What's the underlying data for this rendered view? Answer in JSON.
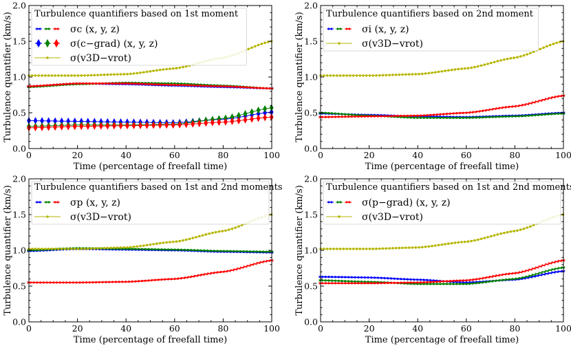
{
  "chart_data": [
    {
      "type": "line",
      "title": "Turbulence quantifiers based on 1st moment",
      "xlabel": "Time (percentage of freefall time)",
      "ylabel": "Turbulence quantifier (km/s)",
      "xlim": [
        0,
        100
      ],
      "ylim": [
        0,
        2.0
      ],
      "xticks": [
        0,
        20,
        40,
        60,
        80,
        100
      ],
      "yticks": [
        0.0,
        0.5,
        1.0,
        1.5,
        2.0
      ],
      "legend": [
        {
          "label": "σc (x, y, z)",
          "colors": [
            "#0000ff",
            "#008000",
            "#ff0000"
          ],
          "marker": "x"
        },
        {
          "label": "σ(c−grad) (x, y, z)",
          "colors": [
            "#0000ff",
            "#008000",
            "#ff0000"
          ],
          "marker": "diamond"
        },
        {
          "label": "σ(v3D−vrot)",
          "colors": [
            "#b5b500"
          ],
          "marker": "dot"
        }
      ],
      "series": [
        {
          "name": "σc x",
          "color": "#0000ff",
          "marker": "x",
          "x": [
            0,
            20,
            40,
            60,
            80,
            100
          ],
          "y": [
            0.87,
            0.91,
            0.9,
            0.88,
            0.86,
            0.84
          ]
        },
        {
          "name": "σc y",
          "color": "#008000",
          "marker": "x",
          "x": [
            0,
            20,
            40,
            60,
            80,
            100
          ],
          "y": [
            0.86,
            0.9,
            0.92,
            0.91,
            0.88,
            0.84
          ]
        },
        {
          "name": "σc z",
          "color": "#ff0000",
          "marker": "x",
          "x": [
            0,
            20,
            40,
            60,
            80,
            100
          ],
          "y": [
            0.87,
            0.91,
            0.91,
            0.89,
            0.87,
            0.84
          ]
        },
        {
          "name": "σ(c−grad) x",
          "color": "#0000ff",
          "marker": "diamond",
          "x": [
            0,
            20,
            40,
            60,
            80,
            100
          ],
          "y": [
            0.39,
            0.38,
            0.37,
            0.36,
            0.41,
            0.51
          ]
        },
        {
          "name": "σ(c−grad) y",
          "color": "#008000",
          "marker": "diamond",
          "x": [
            0,
            20,
            40,
            60,
            80,
            100
          ],
          "y": [
            0.31,
            0.33,
            0.33,
            0.34,
            0.42,
            0.57
          ]
        },
        {
          "name": "σ(c−grad) z",
          "color": "#ff0000",
          "marker": "diamond",
          "x": [
            0,
            20,
            40,
            60,
            80,
            100
          ],
          "y": [
            0.29,
            0.31,
            0.32,
            0.33,
            0.37,
            0.44
          ]
        },
        {
          "name": "σ(v3D−vrot)",
          "color": "#b5b500",
          "marker": "dot",
          "x": [
            0,
            20,
            40,
            60,
            80,
            100
          ],
          "y": [
            1.02,
            1.02,
            1.04,
            1.12,
            1.27,
            1.5
          ]
        }
      ]
    },
    {
      "type": "line",
      "title": "Turbulence quantifiers based on 2nd moment",
      "xlabel": "Time (percentage of freefall time)",
      "ylabel": "Turbulence quantifier (km/s)",
      "xlim": [
        0,
        100
      ],
      "ylim": [
        0,
        2.0
      ],
      "xticks": [
        0,
        20,
        40,
        60,
        80,
        100
      ],
      "yticks": [
        0.0,
        0.5,
        1.0,
        1.5,
        2.0
      ],
      "legend": [
        {
          "label": "σi (x, y, z)",
          "colors": [
            "#0000ff",
            "#008000",
            "#ff0000"
          ],
          "marker": "x"
        },
        {
          "label": "σ(v3D−vrot)",
          "colors": [
            "#b5b500"
          ],
          "marker": "dot"
        }
      ],
      "series": [
        {
          "name": "σi x",
          "color": "#0000ff",
          "marker": "x",
          "x": [
            0,
            20,
            40,
            60,
            80,
            100
          ],
          "y": [
            0.49,
            0.47,
            0.45,
            0.44,
            0.46,
            0.5
          ]
        },
        {
          "name": "σi y",
          "color": "#008000",
          "marker": "x",
          "x": [
            0,
            20,
            40,
            60,
            80,
            100
          ],
          "y": [
            0.5,
            0.46,
            0.43,
            0.43,
            0.45,
            0.49
          ]
        },
        {
          "name": "σi z",
          "color": "#ff0000",
          "marker": "x",
          "x": [
            0,
            20,
            40,
            60,
            80,
            100
          ],
          "y": [
            0.44,
            0.45,
            0.46,
            0.5,
            0.59,
            0.74
          ]
        },
        {
          "name": "σ(v3D−vrot)",
          "color": "#b5b500",
          "marker": "dot",
          "x": [
            0,
            20,
            40,
            60,
            80,
            100
          ],
          "y": [
            1.02,
            1.02,
            1.04,
            1.12,
            1.27,
            1.5
          ]
        }
      ]
    },
    {
      "type": "line",
      "title": "Turbulence quantifiers based on 1st and 2nd moments",
      "xlabel": "Time (percentage of freefall time)",
      "ylabel": "Turbulence quantifier (km/s)",
      "xlim": [
        0,
        100
      ],
      "ylim": [
        0,
        2.0
      ],
      "xticks": [
        0,
        20,
        40,
        60,
        80,
        100
      ],
      "yticks": [
        0.0,
        0.5,
        1.0,
        1.5,
        2.0
      ],
      "legend": [
        {
          "label": "σp (x, y, z)",
          "colors": [
            "#0000ff",
            "#008000",
            "#ff0000"
          ],
          "marker": "x"
        },
        {
          "label": "σ(v3D−vrot)",
          "colors": [
            "#b5b500"
          ],
          "marker": "dot"
        }
      ],
      "series": [
        {
          "name": "σp x",
          "color": "#0000ff",
          "marker": "x",
          "x": [
            0,
            20,
            40,
            60,
            80,
            100
          ],
          "y": [
            0.99,
            1.02,
            1.01,
            1.0,
            0.98,
            0.97
          ]
        },
        {
          "name": "σp y",
          "color": "#008000",
          "marker": "x",
          "x": [
            0,
            20,
            40,
            60,
            80,
            100
          ],
          "y": [
            1.0,
            1.03,
            1.02,
            1.01,
            0.99,
            0.98
          ]
        },
        {
          "name": "σp z",
          "color": "#ff0000",
          "marker": "x",
          "x": [
            0,
            20,
            40,
            60,
            80,
            100
          ],
          "y": [
            0.55,
            0.55,
            0.56,
            0.6,
            0.7,
            0.86
          ]
        },
        {
          "name": "σ(v3D−vrot)",
          "color": "#b5b500",
          "marker": "dot",
          "x": [
            0,
            20,
            40,
            60,
            80,
            100
          ],
          "y": [
            1.02,
            1.02,
            1.04,
            1.12,
            1.27,
            1.5
          ]
        }
      ]
    },
    {
      "type": "line",
      "title": "Turbulence quantifiers based on 1st and 2nd moments",
      "xlabel": "Time (percentage of freefall time)",
      "ylabel": "Turbulence quantifier (km/s)",
      "xlim": [
        0,
        100
      ],
      "ylim": [
        0,
        2.0
      ],
      "xticks": [
        0,
        20,
        40,
        60,
        80,
        100
      ],
      "yticks": [
        0.0,
        0.5,
        1.0,
        1.5,
        2.0
      ],
      "legend": [
        {
          "label": "σ(p−grad) (x, y, z)",
          "colors": [
            "#0000ff",
            "#008000",
            "#ff0000"
          ],
          "marker": "x"
        },
        {
          "label": "σ(v3D−vrot)",
          "colors": [
            "#b5b500"
          ],
          "marker": "dot"
        }
      ],
      "series": [
        {
          "name": "σ(p−grad) x",
          "color": "#0000ff",
          "marker": "x",
          "x": [
            0,
            20,
            40,
            60,
            80,
            100
          ],
          "y": [
            0.63,
            0.62,
            0.59,
            0.55,
            0.59,
            0.71
          ]
        },
        {
          "name": "σ(p−grad) y",
          "color": "#008000",
          "marker": "x",
          "x": [
            0,
            20,
            40,
            60,
            80,
            100
          ],
          "y": [
            0.58,
            0.56,
            0.53,
            0.53,
            0.6,
            0.76
          ]
        },
        {
          "name": "σ(p−grad) z",
          "color": "#ff0000",
          "marker": "x",
          "x": [
            0,
            20,
            40,
            60,
            80,
            100
          ],
          "y": [
            0.54,
            0.54,
            0.55,
            0.58,
            0.68,
            0.86
          ]
        },
        {
          "name": "σ(v3D−vrot)",
          "color": "#b5b500",
          "marker": "dot",
          "x": [
            0,
            20,
            40,
            60,
            80,
            100
          ],
          "y": [
            1.02,
            1.02,
            1.04,
            1.12,
            1.27,
            1.5
          ]
        }
      ]
    }
  ]
}
